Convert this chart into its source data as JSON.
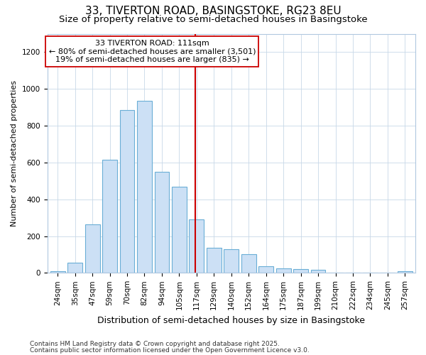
{
  "title1": "33, TIVERTON ROAD, BASINGSTOKE, RG23 8EU",
  "title2": "Size of property relative to semi-detached houses in Basingstoke",
  "xlabel": "Distribution of semi-detached houses by size in Basingstoke",
  "ylabel": "Number of semi-detached properties",
  "annotation_title": "33 TIVERTON ROAD: 111sqm",
  "annotation_line1": "← 80% of semi-detached houses are smaller (3,501)",
  "annotation_line2": "19% of semi-detached houses are larger (835) →",
  "footer1": "Contains HM Land Registry data © Crown copyright and database right 2025.",
  "footer2": "Contains public sector information licensed under the Open Government Licence v3.0.",
  "bar_categories": [
    "24sqm",
    "35sqm",
    "47sqm",
    "59sqm",
    "70sqm",
    "82sqm",
    "94sqm",
    "105sqm",
    "117sqm",
    "129sqm",
    "140sqm",
    "152sqm",
    "164sqm",
    "175sqm",
    "187sqm",
    "199sqm",
    "210sqm",
    "222sqm",
    "234sqm",
    "245sqm",
    "257sqm"
  ],
  "bar_heights": [
    10,
    55,
    265,
    615,
    885,
    935,
    550,
    470,
    290,
    135,
    130,
    100,
    35,
    25,
    20,
    15,
    0,
    0,
    0,
    0,
    8
  ],
  "bar_facecolor": "#cce0f5",
  "bar_edgecolor": "#6aaed6",
  "vline_color": "#cc0000",
  "vline_x_index": 8,
  "box_facecolor": "#ffffff",
  "box_edgecolor": "#cc0000",
  "ylim": [
    0,
    1300
  ],
  "yticks": [
    0,
    200,
    400,
    600,
    800,
    1000,
    1200
  ],
  "bg_color": "#ffffff",
  "axes_bg_color": "#ffffff",
  "grid_color": "#c8d8e8",
  "title1_fontsize": 11,
  "title2_fontsize": 9.5,
  "xlabel_fontsize": 9,
  "ylabel_fontsize": 8,
  "tick_fontsize": 7.5,
  "annotation_fontsize": 8,
  "footer_fontsize": 6.5
}
